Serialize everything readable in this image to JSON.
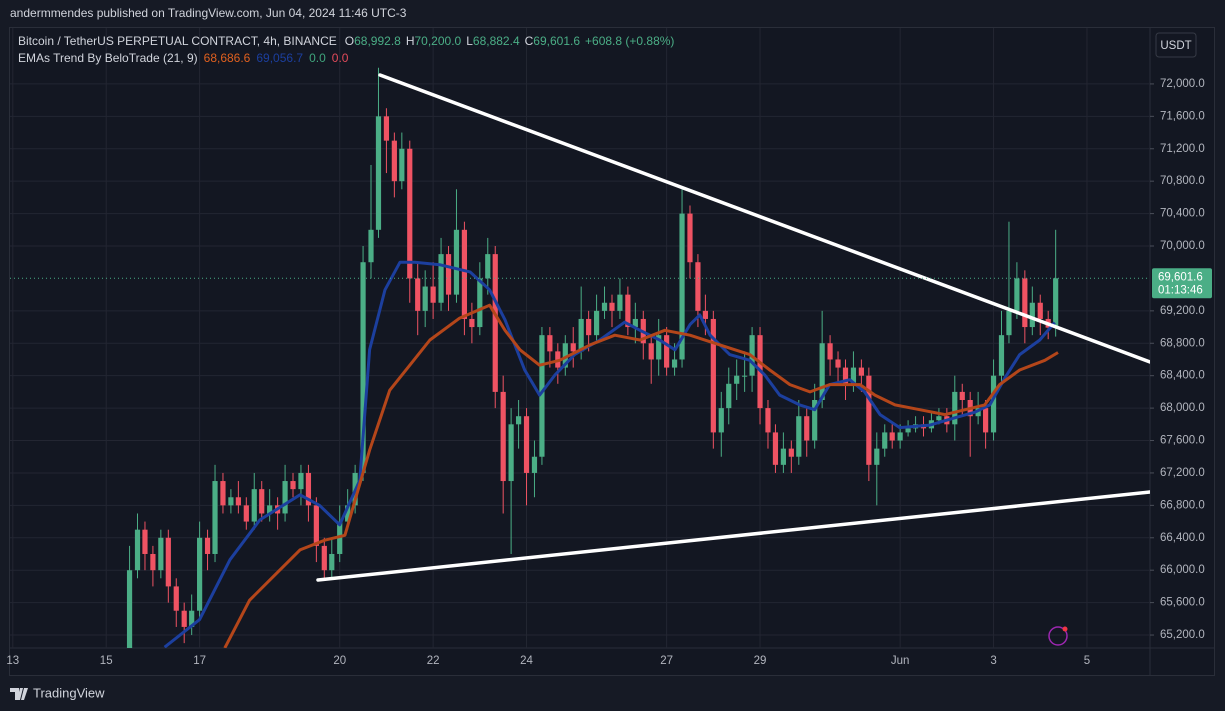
{
  "header": {
    "publisher": "andermmendes published on TradingView.com, Jun 04, 2024 11:46 UTC-3"
  },
  "chart_data": {
    "type": "candlestick",
    "symbol": "Bitcoin / TetherUS PERPETUAL CONTRACT, 4h, BINANCE",
    "ohlc_legend": [
      {
        "label": "O",
        "value": "68,992.8"
      },
      {
        "label": "H",
        "value": "70,200.0"
      },
      {
        "label": "L",
        "value": "68,882.4"
      },
      {
        "label": "C",
        "value": "69,601.6"
      }
    ],
    "change": "+608.8 (+0.88%)",
    "indicator": {
      "name": "EMAs Trend By BeloTrade (21, 9)",
      "values": [
        {
          "text": "68,686.6",
          "color": "#e0601f"
        },
        {
          "text": "69,056.7",
          "color": "#1c3f9e"
        },
        {
          "text": "0.0",
          "color": "#3fa57c"
        },
        {
          "text": "0.0",
          "color": "#e24a5a"
        }
      ]
    },
    "currency": "USDT",
    "up_color": "#4bae86",
    "down_color": "#ef5363",
    "x": [
      15.5,
      15.67,
      15.83,
      16,
      16.17,
      16.33,
      16.5,
      16.67,
      16.83,
      17,
      17.17,
      17.33,
      17.5,
      17.67,
      17.83,
      18,
      18.17,
      18.33,
      18.5,
      18.67,
      18.83,
      19,
      19.17,
      19.33,
      19.5,
      19.67,
      19.83,
      20,
      20.17,
      20.33,
      20.5,
      20.67,
      20.83,
      21,
      21.17,
      21.33,
      21.5,
      21.67,
      21.83,
      22,
      22.17,
      22.33,
      22.5,
      22.67,
      22.83,
      23,
      23.17,
      23.33,
      23.5,
      23.67,
      23.83,
      24,
      24.17,
      24.33,
      24.5,
      24.67,
      24.83,
      25,
      25.17,
      25.33,
      25.5,
      25.67,
      25.83,
      26,
      26.17,
      26.33,
      26.5,
      26.67,
      26.83,
      27,
      27.17,
      27.33,
      27.5,
      27.67,
      27.83,
      28,
      28.17,
      28.33,
      28.5,
      28.67,
      28.83,
      29,
      29.17,
      29.33,
      29.5,
      29.67,
      29.83,
      30,
      30.17,
      30.33,
      30.5,
      30.67,
      30.83,
      31,
      31.17,
      31.33,
      31.5,
      31.67,
      31.83,
      32,
      32.17,
      32.33,
      32.5,
      32.67,
      32.83,
      33,
      33.17,
      33.33,
      33.5,
      33.67,
      33.83,
      34,
      34.17,
      34.33,
      34.5,
      34.67,
      34.83,
      35,
      35.17,
      35.33
    ],
    "open": [
      64950,
      66000,
      66500,
      66200,
      66000,
      66400,
      65800,
      65500,
      65300,
      65500,
      66400,
      66200,
      67100,
      66800,
      66900,
      66800,
      66600,
      67000,
      66700,
      66800,
      66700,
      67100,
      67000,
      67200,
      66800,
      66300,
      66000,
      66200,
      66600,
      66800,
      67200,
      69800,
      70200,
      71600,
      71300,
      70800,
      71200,
      69600,
      69200,
      69500,
      69300,
      69900,
      69400,
      70200,
      69100,
      69000,
      69600,
      69900,
      68200,
      67100,
      67800,
      67900,
      67200,
      67400,
      68900,
      68700,
      68500,
      68800,
      68700,
      69100,
      68900,
      69200,
      69300,
      69200,
      69400,
      69000,
      69100,
      68800,
      68600,
      68900,
      68500,
      68600,
      70400,
      69800,
      69200,
      69100,
      67700,
      68000,
      68300,
      68400,
      68400,
      68900,
      68000,
      67700,
      67300,
      67500,
      67400,
      67900,
      67600,
      68100,
      68800,
      68600,
      68500,
      68300,
      68500,
      68400,
      67300,
      67500,
      67700,
      67600,
      67700,
      67750,
      67800,
      67750,
      67850,
      67900,
      67800,
      68200,
      68100,
      67900,
      68000,
      67700,
      68400,
      68900,
      69200,
      69600,
      69000,
      69300,
      69100,
      68992.8
    ],
    "high": [
      66300,
      66700,
      66600,
      66300,
      66500,
      66500,
      65900,
      65600,
      65700,
      66600,
      66500,
      67300,
      67200,
      67000,
      67100,
      66900,
      67200,
      67100,
      67000,
      66900,
      67300,
      67200,
      67300,
      67300,
      66900,
      66400,
      66400,
      66800,
      67000,
      67300,
      70000,
      71000,
      72200,
      71700,
      71400,
      71400,
      71300,
      69800,
      69700,
      69800,
      70100,
      70000,
      70700,
      70300,
      69300,
      69800,
      70100,
      70000,
      68400,
      68000,
      68100,
      68000,
      67600,
      69000,
      69000,
      68800,
      68900,
      69000,
      69500,
      69200,
      69400,
      69500,
      69400,
      69600,
      69500,
      69300,
      69200,
      68900,
      69100,
      69000,
      68800,
      70700,
      70500,
      69900,
      69400,
      69200,
      68200,
      68500,
      68600,
      68700,
      69000,
      69000,
      68100,
      67800,
      67700,
      67600,
      68100,
      68000,
      68300,
      69200,
      68900,
      68700,
      68600,
      68700,
      68600,
      68500,
      67700,
      67800,
      67800,
      67800,
      67850,
      67900,
      67900,
      67950,
      68000,
      68000,
      68400,
      68300,
      68200,
      68200,
      68100,
      68600,
      69200,
      70300,
      69800,
      69700,
      69500,
      69400,
      69200,
      70200
    ],
    "low": [
      64900,
      65900,
      66000,
      65800,
      65900,
      65600,
      65300,
      65100,
      65200,
      65400,
      66000,
      66100,
      66700,
      66700,
      66700,
      66500,
      66500,
      66600,
      66600,
      66500,
      66600,
      66900,
      66800,
      66600,
      66100,
      65900,
      65900,
      66100,
      66500,
      66700,
      67100,
      69600,
      70100,
      70900,
      70600,
      70700,
      69300,
      68900,
      69000,
      69100,
      69200,
      69200,
      69300,
      68900,
      68800,
      68900,
      69400,
      68000,
      66700,
      66200,
      67500,
      66800,
      66900,
      67300,
      68500,
      68300,
      68400,
      68500,
      68600,
      68700,
      68800,
      69100,
      69000,
      69100,
      68900,
      68800,
      68600,
      68300,
      68400,
      68400,
      68400,
      68500,
      69600,
      69000,
      68900,
      67500,
      67400,
      67800,
      68100,
      68200,
      68200,
      67800,
      67500,
      67200,
      67200,
      67200,
      67300,
      67400,
      67500,
      68000,
      68400,
      68300,
      68100,
      68200,
      68200,
      67100,
      66800,
      67400,
      67500,
      67500,
      67650,
      67700,
      67650,
      67700,
      67800,
      67700,
      67600,
      67900,
      67400,
      67800,
      67500,
      67600,
      68300,
      68800,
      69100,
      68800,
      68900,
      68900,
      68850,
      68882.4
    ],
    "close": [
      66000,
      66500,
      66200,
      66000,
      66400,
      65800,
      65500,
      65300,
      65500,
      66400,
      66200,
      67100,
      66800,
      66900,
      66800,
      66600,
      67000,
      66700,
      66800,
      66700,
      67100,
      67000,
      67200,
      66800,
      66300,
      66000,
      66200,
      66600,
      66800,
      67200,
      69800,
      70200,
      71600,
      71300,
      70800,
      71200,
      69600,
      69200,
      69500,
      69300,
      69900,
      69400,
      70200,
      69100,
      69000,
      69600,
      69900,
      68200,
      67100,
      67800,
      67900,
      67200,
      67400,
      68900,
      68700,
      68500,
      68800,
      68700,
      69100,
      68900,
      69200,
      69300,
      69200,
      69400,
      69000,
      69100,
      68800,
      68600,
      68900,
      68500,
      68600,
      70400,
      69800,
      69200,
      69100,
      67700,
      68000,
      68300,
      68400,
      68400,
      68900,
      68000,
      67700,
      67300,
      67500,
      67400,
      67900,
      67600,
      68100,
      68800,
      68600,
      68500,
      68300,
      68500,
      68400,
      67300,
      67500,
      67700,
      67600,
      67700,
      67750,
      67800,
      67750,
      67850,
      67900,
      67800,
      68200,
      68100,
      67900,
      68000,
      67700,
      68400,
      68900,
      69200,
      69600,
      69000,
      69300,
      69100,
      68992.8,
      69601.6
    ],
    "lines": [
      {
        "color": "#1c3f9e",
        "x": [
          16.25,
          17,
          17.65,
          18.29,
          19.15,
          19.57,
          20,
          20.43,
          20.64,
          20.97,
          21.29,
          21.61,
          22.14,
          22.79,
          23.21,
          23.54,
          23.96,
          24.28,
          24.61,
          25.03,
          25.57,
          26.1,
          26.43,
          26.85,
          27.18,
          27.5,
          27.71,
          27.93,
          28.35,
          28.78,
          29.1,
          29.42,
          29.85,
          30.17,
          30.49,
          30.92,
          31.24,
          31.57,
          31.99,
          32.64,
          33.17,
          33.6,
          33.92,
          34.24,
          34.56,
          34.99,
          35.31
        ],
        "values": [
          65050,
          65390,
          66130,
          66620,
          66930,
          66800,
          66560,
          67110,
          68720,
          69460,
          69800,
          69800,
          69770,
          69680,
          69460,
          69090,
          68470,
          68160,
          68410,
          68660,
          68840,
          69060,
          68960,
          68840,
          68720,
          69030,
          69150,
          68900,
          68660,
          68590,
          68410,
          68160,
          68040,
          67980,
          68290,
          68350,
          68200,
          67920,
          67760,
          67790,
          67880,
          67950,
          68040,
          68370,
          68660,
          68840,
          69056.7
        ]
      },
      {
        "color": "#b4461a",
        "x": [
          17.54,
          18.07,
          18.61,
          19.15,
          19.68,
          20.11,
          20.64,
          21.07,
          21.5,
          21.93,
          22.57,
          23.21,
          23.54,
          23.86,
          24.28,
          24.71,
          25.36,
          25.89,
          26.43,
          26.96,
          27.5,
          28.14,
          28.78,
          29.21,
          29.64,
          30.07,
          30.49,
          31.14,
          31.46,
          31.89,
          32.42,
          32.96,
          33.39,
          33.81,
          34.13,
          34.56,
          35.1,
          35.38
        ],
        "values": [
          65040,
          65630,
          65940,
          66250,
          66370,
          66430,
          67480,
          68220,
          68530,
          68840,
          69110,
          69270,
          68960,
          68720,
          68530,
          68590,
          68780,
          68900,
          68840,
          68960,
          68900,
          68780,
          68660,
          68470,
          68290,
          68200,
          68290,
          68290,
          68160,
          68040,
          67980,
          67920,
          67980,
          68040,
          68290,
          68470,
          68590,
          68686.6
        ]
      }
    ],
    "last_price": {
      "value": 69601.6,
      "label": "69,601.6"
    },
    "countdown": "01:13:46",
    "xlim": [
      12.94,
      37.35
    ],
    "xticks": [
      13,
      15,
      17,
      20,
      22,
      24,
      27,
      29,
      {
        "value": 32,
        "label": "Jun"
      },
      {
        "value": 34,
        "label": "3"
      },
      {
        "value": 36,
        "label": "5"
      }
    ],
    "ylim": [
      65040,
      72690
    ],
    "yticks": [
      {
        "value": 65200,
        "label": "65,200.0"
      },
      {
        "value": 65600,
        "label": "65,600.0"
      },
      {
        "value": 66000,
        "label": "66,000.0"
      },
      {
        "value": 66400,
        "label": "66,400.0"
      },
      {
        "value": 66800,
        "label": "66,800.0"
      },
      {
        "value": 67200,
        "label": "67,200.0"
      },
      {
        "value": 67600,
        "label": "67,600.0"
      },
      {
        "value": 68000,
        "label": "68,000.0"
      },
      {
        "value": 68400,
        "label": "68,400.0"
      },
      {
        "value": 68800,
        "label": "68,800.0"
      },
      {
        "value": 69200,
        "label": "69,200.0"
      },
      {
        "value": 70000,
        "label": "70,000.0"
      },
      {
        "value": 70400,
        "label": "70,400.0"
      },
      {
        "value": 70800,
        "label": "70,800.0"
      },
      {
        "value": 71200,
        "label": "71,200.0"
      },
      {
        "value": 71600,
        "label": "71,600.0"
      },
      {
        "value": 72000,
        "label": "72,000.0"
      }
    ],
    "grid": true
  },
  "footer": {
    "brand": "TradingView"
  }
}
